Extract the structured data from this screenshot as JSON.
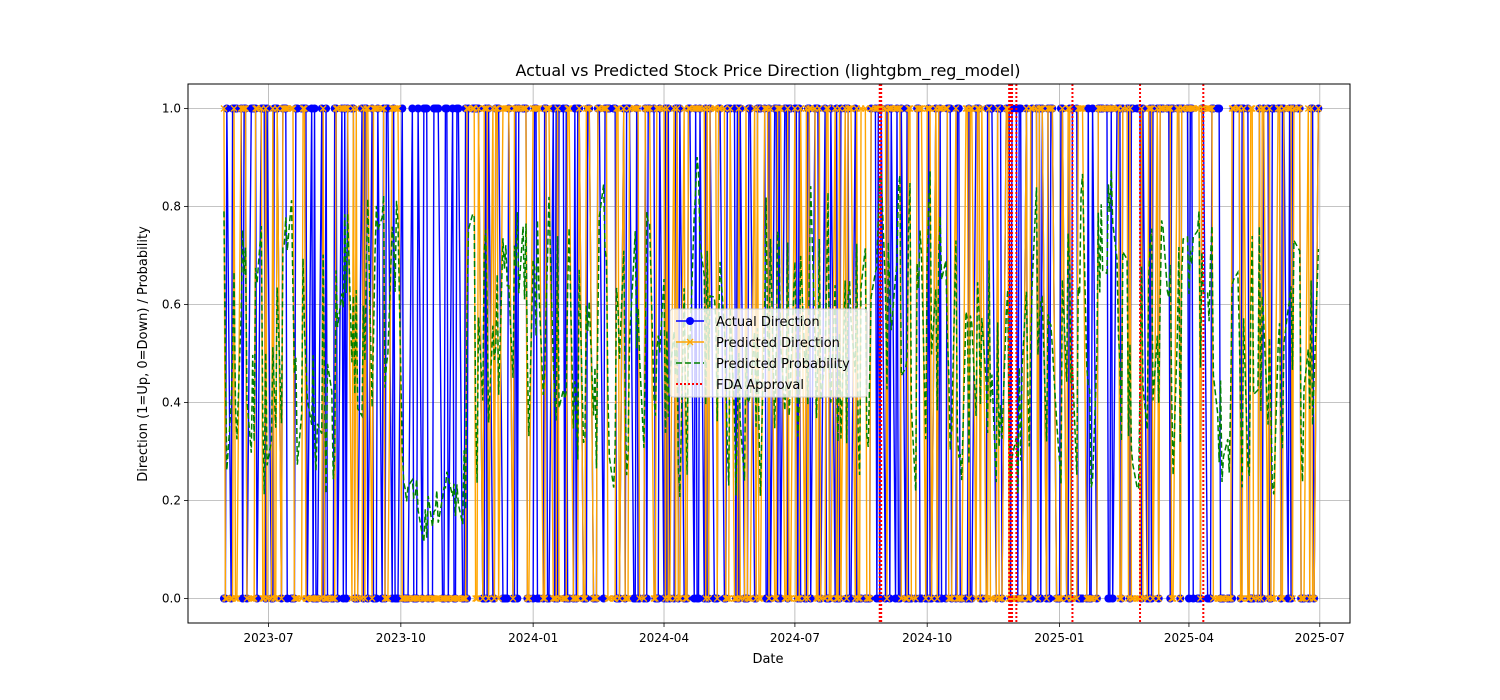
{
  "chart_data": {
    "type": "line",
    "title": "Actual vs Predicted Stock Price Direction (lightgbm_reg_model)",
    "xlabel": "Date",
    "ylabel": "Direction (1=Up, 0=Down) / Probability",
    "x_axis": "date",
    "xlim": [
      "2023-05-06",
      "2025-07-22"
    ],
    "ylim": [
      -0.05,
      1.05
    ],
    "x_ticks": [
      "2023-07",
      "2023-10",
      "2024-01",
      "2024-04",
      "2024-07",
      "2024-10",
      "2025-01",
      "2025-04",
      "2025-07"
    ],
    "y_ticks": [
      "0.0",
      "0.2",
      "0.4",
      "0.6",
      "0.8",
      "1.0"
    ],
    "grid": true,
    "legend_position": "center",
    "x_range_plotted": [
      "2023-05-31",
      "2025-06-30"
    ],
    "series": [
      {
        "name": "Actual Direction",
        "color": "#0000ff",
        "style": "solid",
        "marker": "circle",
        "values_sample": [
          1,
          0,
          1,
          0,
          0,
          1,
          0,
          1,
          1,
          0,
          1,
          0,
          0,
          1,
          0,
          1,
          0,
          0,
          1,
          1,
          0,
          1,
          0,
          1
        ]
      },
      {
        "name": "Predicted Direction",
        "color": "#ffa500",
        "style": "solid",
        "marker": "x",
        "values_sample": [
          1,
          0,
          1,
          1,
          0,
          1,
          0,
          0,
          1,
          0,
          1,
          1,
          0,
          1,
          0,
          1,
          1,
          0,
          1,
          0,
          0,
          1,
          1,
          0
        ]
      },
      {
        "name": "Predicted Probability",
        "color": "#008000",
        "style": "dashed",
        "marker": "none",
        "values_sample": [
          0.79,
          0.44,
          0.62,
          0.3,
          0.55,
          0.18,
          0.65,
          0.35,
          0.13,
          0.31,
          0.58,
          0.45,
          0.69,
          0.2,
          0.81,
          0.4,
          0.88,
          0.26,
          0.95,
          0.6,
          0.86,
          0.33
        ]
      }
    ],
    "vlines": {
      "name": "FDA Approval",
      "color": "#ff0000",
      "style": "dotted",
      "dates": [
        "2024-08-29",
        "2024-08-30",
        "2024-11-27",
        "2024-11-28",
        "2024-11-29",
        "2024-12-02",
        "2025-01-10",
        "2025-02-26",
        "2025-04-11"
      ]
    }
  }
}
